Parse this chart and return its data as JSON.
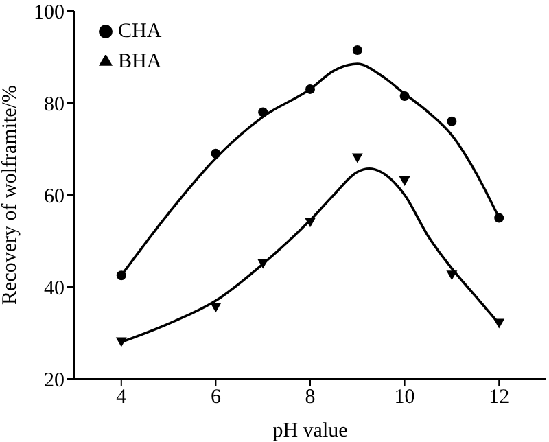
{
  "chart_data": {
    "type": "scatter",
    "xlabel": "pH value",
    "ylabel": "Recovery of wolframite/%",
    "xlim": [
      3,
      13
    ],
    "xticks": [
      4,
      6,
      8,
      10,
      12
    ],
    "ylim": [
      20,
      100
    ],
    "yticks": [
      20,
      40,
      60,
      80,
      100
    ],
    "grid": false,
    "legend": "top left",
    "series": [
      {
        "name": "CHA",
        "marker": "circle",
        "color": "#000000",
        "x": [
          4,
          6,
          7,
          8,
          9,
          10,
          11,
          12
        ],
        "values": [
          42.5,
          69,
          78,
          83,
          91.5,
          81.5,
          76,
          55
        ]
      },
      {
        "name": "BHA",
        "marker": "triangle",
        "color": "#000000",
        "x": [
          4,
          6,
          7,
          8,
          9,
          10,
          11,
          12
        ],
        "values": [
          28,
          35.5,
          45,
          54,
          68,
          63,
          42.5,
          32
        ]
      },
      {
        "type": "line",
        "marker": "none",
        "color": "#000000",
        "x": [
          4,
          5,
          6,
          7,
          8,
          8.5,
          9,
          9.5,
          10,
          10.5,
          11,
          11.5,
          12
        ],
        "values": [
          42.5,
          56,
          68,
          77,
          83,
          87,
          88.5,
          86,
          82,
          78,
          73,
          65,
          55
        ]
      },
      {
        "type": "line",
        "marker": "none",
        "color": "#000000",
        "x": [
          4,
          5,
          6,
          7,
          8,
          8.5,
          9,
          9.25,
          9.5,
          10,
          10.5,
          11,
          11.5,
          12
        ],
        "values": [
          28,
          32,
          37,
          45,
          54.5,
          60,
          65,
          65.7,
          65,
          60,
          51,
          44,
          38,
          32
        ]
      }
    ]
  }
}
